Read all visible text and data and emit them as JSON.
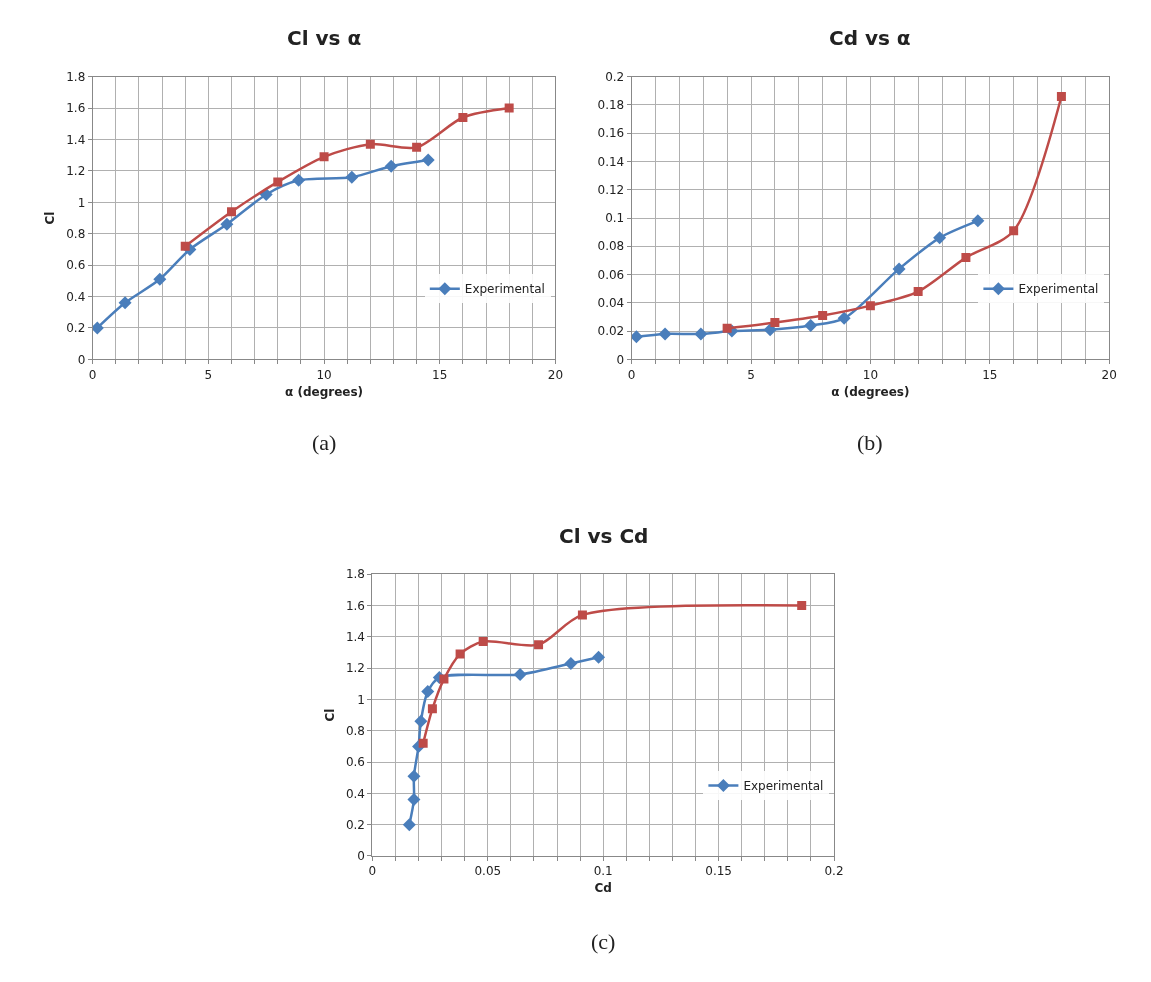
{
  "chart_data": [
    {
      "type": "line",
      "title": "Cl vs α",
      "xlabel": "α (degrees)",
      "ylabel": "Cl",
      "annotations": [
        "(a)"
      ],
      "xlim": [
        0,
        20
      ],
      "ylim": [
        0,
        1.8
      ],
      "xticks": [
        0,
        {
          "value": 1,
          "label": null
        },
        {
          "value": 2,
          "label": null
        },
        {
          "value": 3,
          "label": null
        },
        {
          "value": 4,
          "label": null
        },
        5,
        {
          "value": 6,
          "label": null
        },
        {
          "value": 7,
          "label": null
        },
        {
          "value": 8,
          "label": null
        },
        {
          "value": 9,
          "label": null
        },
        10,
        {
          "value": 11,
          "label": null
        },
        {
          "value": 12,
          "label": null
        },
        {
          "value": 13,
          "label": null
        },
        {
          "value": 14,
          "label": null
        },
        15,
        {
          "value": 16,
          "label": null
        },
        {
          "value": 17,
          "label": null
        },
        {
          "value": 18,
          "label": null
        },
        {
          "value": 19,
          "label": null
        },
        20
      ],
      "yticks": [
        0,
        0.2,
        0.4,
        0.6,
        0.8,
        1,
        1.2,
        1.4,
        1.6,
        1.8
      ],
      "grid": true,
      "legend": "right",
      "series": [
        {
          "name": "Experimental",
          "color": "#4a7ebb",
          "marker": "diamond",
          "x": [
            0.2,
            1.4,
            2.9,
            4.2,
            5.8,
            7.5,
            8.9,
            11.2,
            12.9,
            14.5
          ],
          "values": [
            0.2,
            0.36,
            0.51,
            0.7,
            0.86,
            1.05,
            1.14,
            1.16,
            1.23,
            1.27
          ]
        },
        {
          "color": "#be4b48",
          "marker": "square",
          "x": [
            4,
            6,
            8,
            10,
            12,
            14,
            16,
            18
          ],
          "values": [
            0.72,
            0.94,
            1.13,
            1.29,
            1.37,
            1.35,
            1.54,
            1.6
          ]
        }
      ]
    },
    {
      "type": "line",
      "title": "Cd vs α",
      "xlabel": "α (degrees)",
      "annotations": [
        "(b)"
      ],
      "xlim": [
        0,
        20
      ],
      "ylim": [
        0,
        0.2
      ],
      "xticks": [
        0,
        {
          "value": 1,
          "label": null
        },
        {
          "value": 2,
          "label": null
        },
        {
          "value": 3,
          "label": null
        },
        {
          "value": 4,
          "label": null
        },
        5,
        {
          "value": 6,
          "label": null
        },
        {
          "value": 7,
          "label": null
        },
        {
          "value": 8,
          "label": null
        },
        {
          "value": 9,
          "label": null
        },
        10,
        {
          "value": 11,
          "label": null
        },
        {
          "value": 12,
          "label": null
        },
        {
          "value": 13,
          "label": null
        },
        {
          "value": 14,
          "label": null
        },
        15,
        {
          "value": 16,
          "label": null
        },
        {
          "value": 17,
          "label": null
        },
        {
          "value": 18,
          "label": null
        },
        {
          "value": 19,
          "label": null
        },
        20
      ],
      "yticks": [
        0,
        0.02,
        0.04,
        0.06,
        0.08,
        0.1,
        0.12,
        0.14,
        0.16,
        0.18,
        0.2
      ],
      "grid": true,
      "legend": "right",
      "series": [
        {
          "name": "Experimental",
          "color": "#4a7ebb",
          "marker": "diamond",
          "x": [
            0.2,
            1.4,
            2.9,
            4.2,
            5.8,
            7.5,
            8.9,
            11.2,
            12.9,
            14.5
          ],
          "values": [
            0.016,
            0.018,
            0.018,
            0.02,
            0.021,
            0.024,
            0.029,
            0.064,
            0.086,
            0.098
          ]
        },
        {
          "color": "#be4b48",
          "marker": "square",
          "x": [
            4,
            6,
            8,
            10,
            12,
            14,
            16,
            18
          ],
          "values": [
            0.022,
            0.026,
            0.031,
            0.038,
            0.048,
            0.072,
            0.091,
            0.186
          ]
        }
      ]
    },
    {
      "type": "line",
      "title": "Cl vs Cd",
      "xlabel": "Cd",
      "ylabel": "Cl",
      "annotations": [
        "(c)"
      ],
      "xlim": [
        0,
        0.2
      ],
      "ylim": [
        0,
        1.8
      ],
      "xticks": [
        0,
        {
          "value": 0.01,
          "label": null
        },
        {
          "value": 0.02,
          "label": null
        },
        {
          "value": 0.03,
          "label": null
        },
        {
          "value": 0.04,
          "label": null
        },
        0.05,
        {
          "value": 0.06,
          "label": null
        },
        {
          "value": 0.07,
          "label": null
        },
        {
          "value": 0.08,
          "label": null
        },
        {
          "value": 0.09,
          "label": null
        },
        0.1,
        {
          "value": 0.11,
          "label": null
        },
        {
          "value": 0.12,
          "label": null
        },
        {
          "value": 0.13,
          "label": null
        },
        {
          "value": 0.14,
          "label": null
        },
        0.15,
        {
          "value": 0.16,
          "label": null
        },
        {
          "value": 0.17,
          "label": null
        },
        {
          "value": 0.18,
          "label": null
        },
        {
          "value": 0.19,
          "label": null
        },
        0.2
      ],
      "yticks": [
        0,
        0.2,
        0.4,
        0.6,
        0.8,
        1,
        1.2,
        1.4,
        1.6,
        1.8
      ],
      "grid": true,
      "legend": "right",
      "series": [
        {
          "name": "Experimental",
          "color": "#4a7ebb",
          "marker": "diamond",
          "x": [
            0.016,
            0.018,
            0.018,
            0.02,
            0.021,
            0.024,
            0.029,
            0.064,
            0.086,
            0.098
          ],
          "values": [
            0.2,
            0.36,
            0.51,
            0.7,
            0.86,
            1.05,
            1.14,
            1.16,
            1.23,
            1.27
          ]
        },
        {
          "color": "#be4b48",
          "marker": "square",
          "x": [
            0.022,
            0.026,
            0.031,
            0.038,
            0.048,
            0.072,
            0.091,
            0.186
          ],
          "values": [
            0.72,
            0.94,
            1.13,
            1.29,
            1.37,
            1.35,
            1.54,
            1.6
          ]
        }
      ]
    }
  ]
}
